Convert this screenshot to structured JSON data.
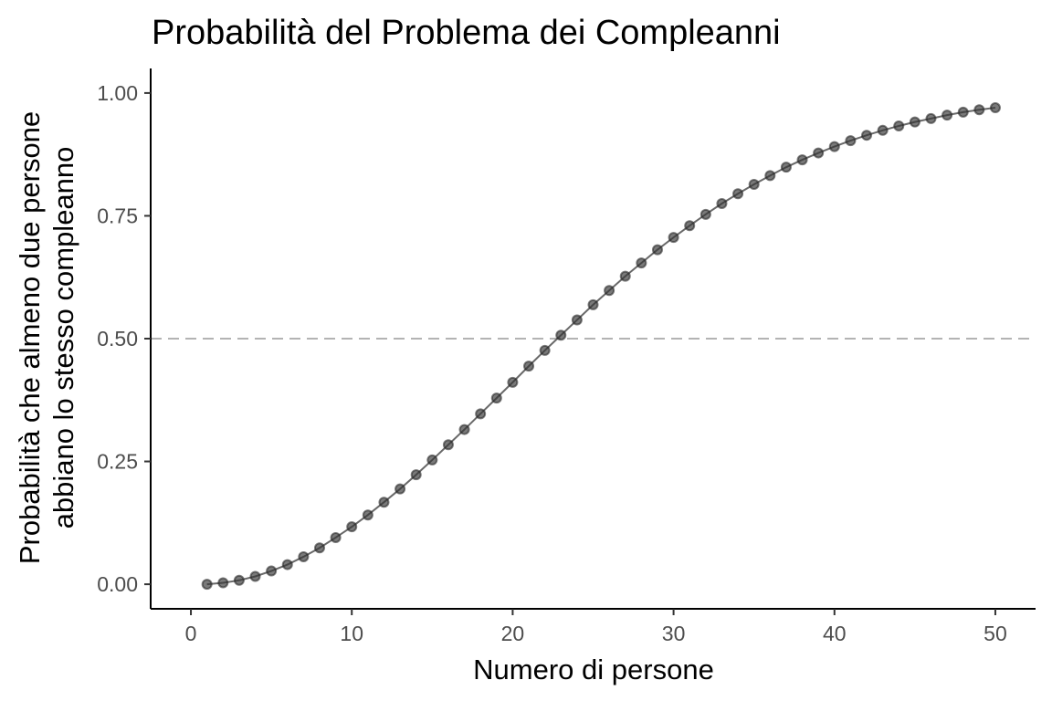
{
  "chart_data": {
    "type": "line",
    "title": "Probabilità del Problema dei Compleanni",
    "xlabel": "Numero di persone",
    "ylabel_lines": [
      "Probabilità che almeno due persone",
      "abbiano lo stesso compleanno"
    ],
    "xlim": [
      -2.5,
      52.5
    ],
    "ylim": [
      -0.05,
      1.05
    ],
    "x_ticks": [
      0,
      10,
      20,
      30,
      40,
      50
    ],
    "x_tick_labels": [
      "0",
      "10",
      "20",
      "30",
      "40",
      "50"
    ],
    "y_ticks": [
      0,
      0.25,
      0.5,
      0.75,
      1.0
    ],
    "y_tick_labels": [
      "0.00",
      "0.25",
      "0.50",
      "0.75",
      "1.00"
    ],
    "reference_line": {
      "y": 0.5,
      "style": "dashed",
      "color": "#b3b3b3"
    },
    "grid": false,
    "series": [
      {
        "color": "#333333",
        "x": [
          1,
          2,
          3,
          4,
          5,
          6,
          7,
          8,
          9,
          10,
          11,
          12,
          13,
          14,
          15,
          16,
          17,
          18,
          19,
          20,
          21,
          22,
          23,
          24,
          25,
          26,
          27,
          28,
          29,
          30,
          31,
          32,
          33,
          34,
          35,
          36,
          37,
          38,
          39,
          40,
          41,
          42,
          43,
          44,
          45,
          46,
          47,
          48,
          49,
          50
        ],
        "y": [
          0.0,
          0.003,
          0.008,
          0.016,
          0.027,
          0.04,
          0.056,
          0.074,
          0.095,
          0.117,
          0.141,
          0.167,
          0.194,
          0.223,
          0.253,
          0.284,
          0.315,
          0.347,
          0.379,
          0.411,
          0.444,
          0.476,
          0.507,
          0.538,
          0.569,
          0.598,
          0.627,
          0.654,
          0.681,
          0.706,
          0.73,
          0.753,
          0.775,
          0.795,
          0.814,
          0.832,
          0.849,
          0.864,
          0.878,
          0.891,
          0.903,
          0.914,
          0.924,
          0.933,
          0.941,
          0.948,
          0.955,
          0.961,
          0.966,
          0.97
        ]
      }
    ]
  }
}
